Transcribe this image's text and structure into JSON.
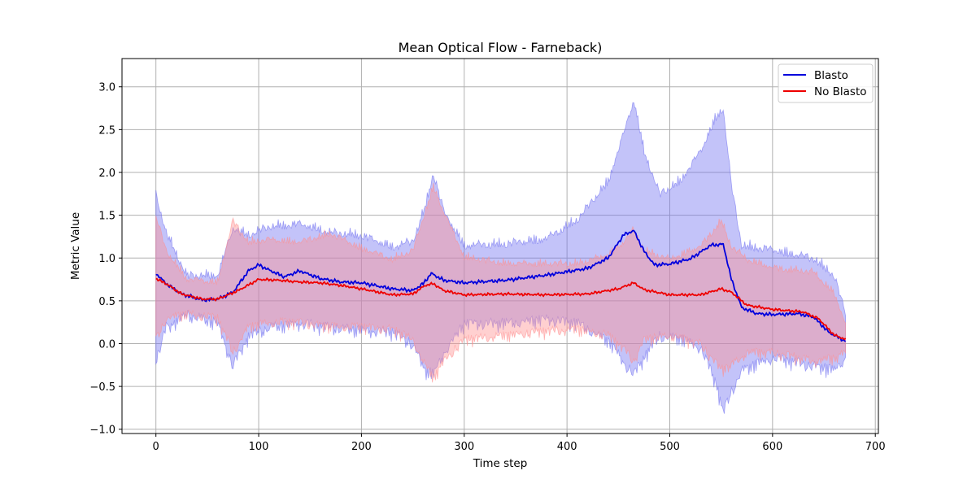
{
  "chart_data": {
    "type": "line",
    "title": "Mean Optical Flow - Farneback)",
    "xlabel": "Time step",
    "ylabel": "Metric Value",
    "xlim": [
      -33,
      703
    ],
    "ylim": [
      -1.05,
      3.33
    ],
    "xticks": [
      0,
      100,
      200,
      300,
      400,
      500,
      600,
      700
    ],
    "yticks": [
      -1.0,
      -0.5,
      0.0,
      0.5,
      1.0,
      1.5,
      2.0,
      2.5,
      3.0
    ],
    "ytick_labels": [
      "−1.0",
      "−0.5",
      "0.0",
      "0.5",
      "1.0",
      "1.5",
      "2.0",
      "2.5",
      "3.0"
    ],
    "xtick_labels": [
      "0",
      "100",
      "200",
      "300",
      "400",
      "500",
      "600",
      "700"
    ],
    "grid": true,
    "legend_position": "top-right",
    "x_end": 671,
    "series": [
      {
        "name": "Blasto",
        "color": "#0000dd",
        "band_color": "#6f6ff0",
        "mean_keypoints": [
          [
            0,
            0.82
          ],
          [
            10,
            0.7
          ],
          [
            25,
            0.58
          ],
          [
            45,
            0.51
          ],
          [
            60,
            0.52
          ],
          [
            75,
            0.6
          ],
          [
            90,
            0.85
          ],
          [
            100,
            0.92
          ],
          [
            110,
            0.86
          ],
          [
            125,
            0.78
          ],
          [
            140,
            0.85
          ],
          [
            160,
            0.76
          ],
          [
            180,
            0.72
          ],
          [
            200,
            0.71
          ],
          [
            230,
            0.64
          ],
          [
            250,
            0.62
          ],
          [
            260,
            0.7
          ],
          [
            268,
            0.82
          ],
          [
            280,
            0.74
          ],
          [
            300,
            0.71
          ],
          [
            340,
            0.74
          ],
          [
            380,
            0.8
          ],
          [
            420,
            0.88
          ],
          [
            440,
            1.0
          ],
          [
            455,
            1.27
          ],
          [
            465,
            1.32
          ],
          [
            475,
            1.08
          ],
          [
            485,
            0.92
          ],
          [
            500,
            0.93
          ],
          [
            520,
            0.99
          ],
          [
            540,
            1.15
          ],
          [
            552,
            1.16
          ],
          [
            560,
            0.75
          ],
          [
            570,
            0.42
          ],
          [
            585,
            0.35
          ],
          [
            600,
            0.34
          ],
          [
            625,
            0.35
          ],
          [
            640,
            0.31
          ],
          [
            655,
            0.13
          ],
          [
            671,
            0.03
          ]
        ],
        "upper_keypoints": [
          [
            0,
            1.7
          ],
          [
            10,
            1.25
          ],
          [
            30,
            0.75
          ],
          [
            60,
            0.75
          ],
          [
            75,
            1.3
          ],
          [
            90,
            1.22
          ],
          [
            110,
            1.32
          ],
          [
            140,
            1.35
          ],
          [
            170,
            1.25
          ],
          [
            200,
            1.22
          ],
          [
            230,
            1.08
          ],
          [
            250,
            1.15
          ],
          [
            262,
            1.55
          ],
          [
            270,
            1.95
          ],
          [
            280,
            1.5
          ],
          [
            300,
            1.1
          ],
          [
            340,
            1.12
          ],
          [
            380,
            1.18
          ],
          [
            410,
            1.4
          ],
          [
            440,
            1.85
          ],
          [
            455,
            2.4
          ],
          [
            465,
            2.8
          ],
          [
            475,
            2.2
          ],
          [
            490,
            1.7
          ],
          [
            510,
            1.85
          ],
          [
            530,
            2.2
          ],
          [
            545,
            2.6
          ],
          [
            552,
            2.7
          ],
          [
            560,
            1.8
          ],
          [
            570,
            1.1
          ],
          [
            600,
            1.05
          ],
          [
            640,
            0.95
          ],
          [
            660,
            0.75
          ],
          [
            671,
            0.3
          ]
        ],
        "lower_keypoints": [
          [
            0,
            -0.15
          ],
          [
            10,
            0.25
          ],
          [
            30,
            0.4
          ],
          [
            60,
            0.3
          ],
          [
            75,
            -0.2
          ],
          [
            90,
            0.15
          ],
          [
            110,
            0.25
          ],
          [
            140,
            0.3
          ],
          [
            170,
            0.25
          ],
          [
            200,
            0.22
          ],
          [
            230,
            0.2
          ],
          [
            250,
            0.05
          ],
          [
            262,
            -0.25
          ],
          [
            270,
            -0.3
          ],
          [
            280,
            -0.05
          ],
          [
            300,
            0.3
          ],
          [
            340,
            0.3
          ],
          [
            380,
            0.35
          ],
          [
            410,
            0.3
          ],
          [
            440,
            0.1
          ],
          [
            455,
            -0.15
          ],
          [
            465,
            -0.3
          ],
          [
            475,
            -0.1
          ],
          [
            490,
            0.15
          ],
          [
            510,
            0.12
          ],
          [
            530,
            0.02
          ],
          [
            545,
            -0.4
          ],
          [
            552,
            -0.75
          ],
          [
            560,
            -0.5
          ],
          [
            570,
            -0.25
          ],
          [
            600,
            -0.1
          ],
          [
            640,
            -0.2
          ],
          [
            660,
            -0.25
          ],
          [
            671,
            -0.1
          ]
        ],
        "noise": [
          0.09,
          0.14,
          0.02
        ]
      },
      {
        "name": "No Blasto",
        "color": "#ee0000",
        "band_color": "#ff8f8f",
        "mean_keypoints": [
          [
            0,
            0.76
          ],
          [
            10,
            0.7
          ],
          [
            25,
            0.58
          ],
          [
            45,
            0.52
          ],
          [
            60,
            0.52
          ],
          [
            80,
            0.62
          ],
          [
            100,
            0.75
          ],
          [
            120,
            0.74
          ],
          [
            140,
            0.72
          ],
          [
            160,
            0.71
          ],
          [
            180,
            0.68
          ],
          [
            200,
            0.64
          ],
          [
            230,
            0.57
          ],
          [
            250,
            0.58
          ],
          [
            262,
            0.68
          ],
          [
            270,
            0.7
          ],
          [
            280,
            0.62
          ],
          [
            300,
            0.57
          ],
          [
            340,
            0.58
          ],
          [
            380,
            0.57
          ],
          [
            420,
            0.58
          ],
          [
            450,
            0.64
          ],
          [
            465,
            0.71
          ],
          [
            475,
            0.63
          ],
          [
            500,
            0.57
          ],
          [
            530,
            0.57
          ],
          [
            550,
            0.64
          ],
          [
            560,
            0.6
          ],
          [
            575,
            0.45
          ],
          [
            600,
            0.4
          ],
          [
            630,
            0.37
          ],
          [
            645,
            0.29
          ],
          [
            660,
            0.1
          ],
          [
            671,
            0.05
          ]
        ],
        "upper_keypoints": [
          [
            0,
            1.45
          ],
          [
            10,
            1.05
          ],
          [
            30,
            0.72
          ],
          [
            60,
            0.68
          ],
          [
            75,
            1.4
          ],
          [
            90,
            1.15
          ],
          [
            110,
            1.18
          ],
          [
            140,
            1.15
          ],
          [
            170,
            1.25
          ],
          [
            200,
            1.08
          ],
          [
            230,
            0.95
          ],
          [
            250,
            1.05
          ],
          [
            262,
            1.5
          ],
          [
            270,
            1.8
          ],
          [
            280,
            1.5
          ],
          [
            300,
            0.98
          ],
          [
            340,
            0.9
          ],
          [
            380,
            0.9
          ],
          [
            410,
            0.9
          ],
          [
            440,
            1.0
          ],
          [
            455,
            1.15
          ],
          [
            465,
            1.3
          ],
          [
            475,
            1.05
          ],
          [
            500,
            0.95
          ],
          [
            530,
            1.1
          ],
          [
            550,
            1.4
          ],
          [
            560,
            1.1
          ],
          [
            575,
            0.95
          ],
          [
            600,
            0.85
          ],
          [
            640,
            0.8
          ],
          [
            660,
            0.55
          ],
          [
            671,
            0.2
          ]
        ],
        "lower_keypoints": [
          [
            0,
            0.1
          ],
          [
            10,
            0.35
          ],
          [
            30,
            0.4
          ],
          [
            60,
            0.35
          ],
          [
            75,
            -0.05
          ],
          [
            90,
            0.25
          ],
          [
            110,
            0.3
          ],
          [
            140,
            0.3
          ],
          [
            170,
            0.25
          ],
          [
            200,
            0.25
          ],
          [
            230,
            0.22
          ],
          [
            250,
            0.1
          ],
          [
            262,
            -0.2
          ],
          [
            270,
            -0.35
          ],
          [
            280,
            -0.15
          ],
          [
            300,
            0.1
          ],
          [
            340,
            0.15
          ],
          [
            380,
            0.2
          ],
          [
            410,
            0.22
          ],
          [
            440,
            0.15
          ],
          [
            455,
            0.0
          ],
          [
            465,
            -0.15
          ],
          [
            475,
            0.1
          ],
          [
            500,
            0.15
          ],
          [
            530,
            0.05
          ],
          [
            550,
            -0.25
          ],
          [
            560,
            -0.2
          ],
          [
            575,
            -0.05
          ],
          [
            600,
            -0.05
          ],
          [
            640,
            -0.15
          ],
          [
            660,
            -0.12
          ],
          [
            671,
            -0.05
          ]
        ],
        "noise": [
          0.07,
          0.12,
          0.015
        ]
      }
    ]
  }
}
